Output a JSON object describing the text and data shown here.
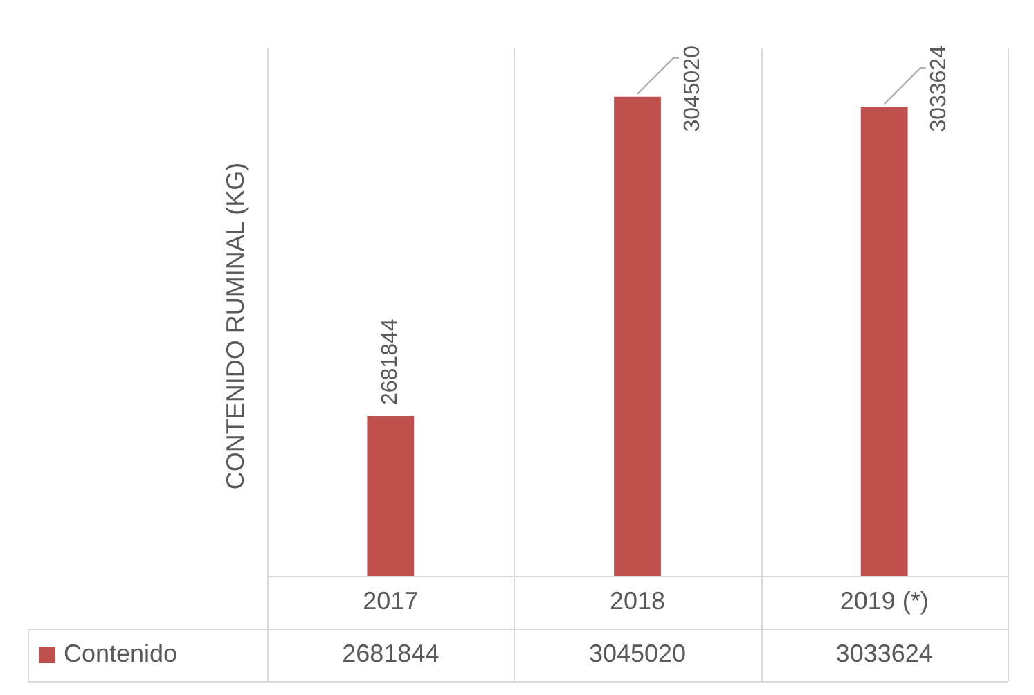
{
  "chart_data": {
    "type": "bar",
    "ylabel": "CONTENIDO RUMINAL (KG)",
    "categories": [
      "2017",
      "2018",
      "2019 (*)"
    ],
    "series": [
      {
        "name": "Contenido",
        "color": "#c0504d",
        "values": [
          2681844,
          3045020,
          3033624
        ]
      }
    ],
    "annotations": [
      "2681844",
      "3045020",
      "3033624"
    ],
    "ylim": [
      2500000,
      3100000
    ],
    "data_labels": true,
    "legend": "bottom",
    "tick_labels": "x"
  }
}
